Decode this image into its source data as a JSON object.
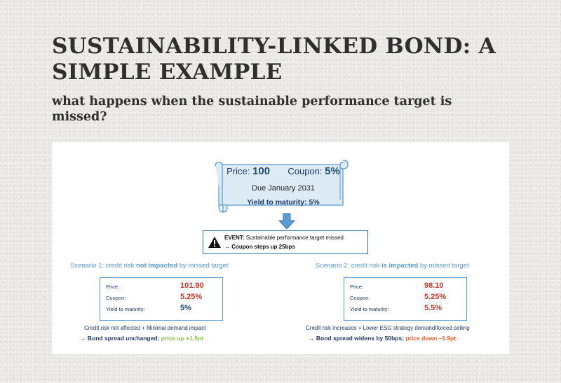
{
  "title": "SUSTAINABILITY-LINKED BOND: A SIMPLE EXAMPLE",
  "subtitle": "what happens when the sustainable performance target is missed?",
  "bond": {
    "price_label": "Price:",
    "price_value": "100",
    "coupon_label": "Coupon:",
    "coupon_value": "5%",
    "due": "Due January 2031",
    "ytm": "Yield to maturity: 5%"
  },
  "event": {
    "label": "EVENT:",
    "text": "Sustainable performance target missed",
    "consequence": "→ Coupon steps up 25bps"
  },
  "scenario1": {
    "title_pre": "Scenario 1: credit risk ",
    "title_bold": "not impacted",
    "title_post": " by missed target",
    "price_label": "Price:",
    "price_value": "101.90",
    "coupon_label": "Coupon:",
    "coupon_value": "5.25%",
    "ytm_label": "Yield to maturity:",
    "ytm_value": "5%",
    "note": "Credit risk not affected  +  Minimal demand impact",
    "result_pre": "→  Bond spread unchanged; ",
    "result_highlight": "price up +1.9pt"
  },
  "scenario2": {
    "title_pre": "Scenario 2: credit risk ",
    "title_bold": "is impacted",
    "title_post": " by missed target",
    "price_label": "Price:",
    "price_value": "98.10",
    "coupon_label": "Coupon:",
    "coupon_value": "5.25%",
    "ytm_label": "Yield to maturity:",
    "ytm_value": "5.5%",
    "note": "Credit risk increases +  Lower ESG strategy demand/forced selling",
    "result_pre": "→  Bond spread widens by 50bps; ",
    "result_highlight": "price down –1.9pt"
  },
  "colors": {
    "accent_blue": "#5b9bd5",
    "scroll_fill": "#ddebf7",
    "price_red": "#c0392b",
    "up_green": "#8bc34a",
    "down_orange": "#ff5a1f"
  },
  "icons": [
    "scroll-icon",
    "down-arrow-icon",
    "warning-icon"
  ]
}
